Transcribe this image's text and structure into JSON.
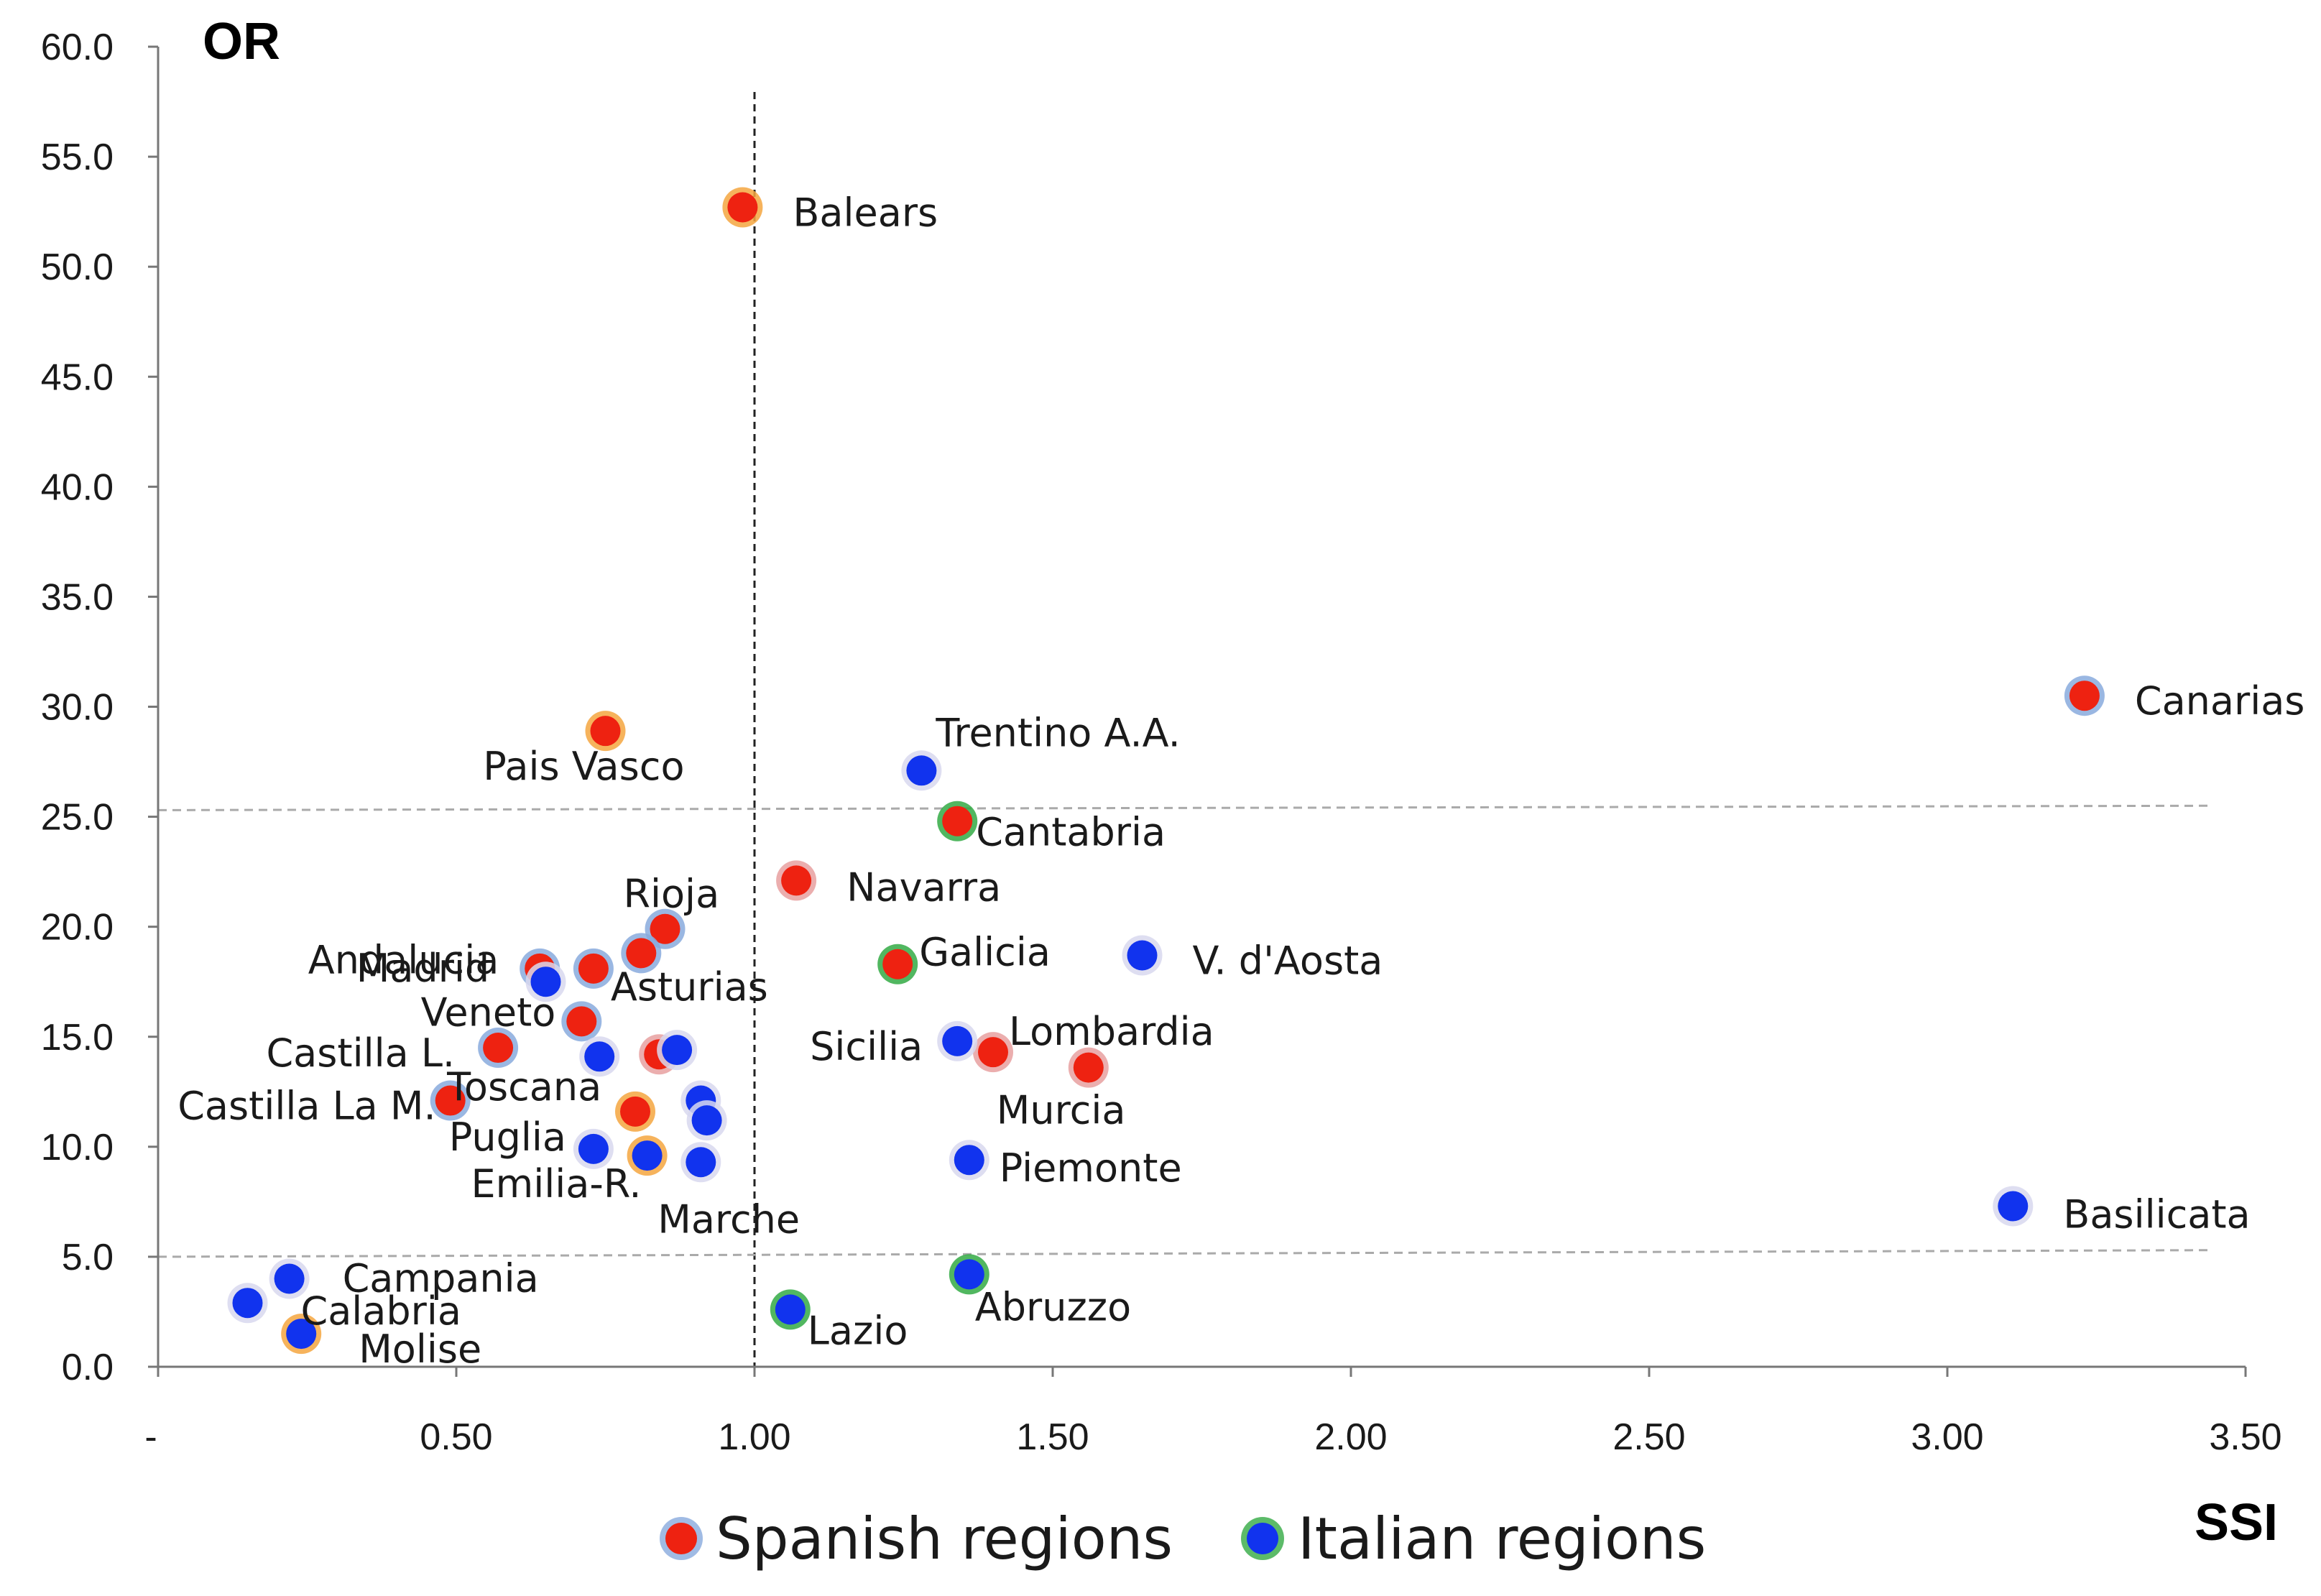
{
  "chart_data": {
    "type": "scatter",
    "xlabel": "SSI",
    "ylabel": "OR",
    "xlim": [
      0,
      3.5
    ],
    "ylim": [
      0,
      60
    ],
    "x_ticks": [
      "-",
      "0.50",
      "1.00",
      "1.50",
      "2.00",
      "2.50",
      "3.00",
      "3.50"
    ],
    "x_tick_values": [
      0,
      0.5,
      1.0,
      1.5,
      2.0,
      2.5,
      3.0,
      3.5
    ],
    "y_ticks": [
      "0.0",
      "5.0",
      "10.0",
      "15.0",
      "20.0",
      "25.0",
      "30.0",
      "35.0",
      "40.0",
      "45.0",
      "50.0",
      "55.0",
      "60.0"
    ],
    "y_tick_values": [
      0,
      5,
      10,
      15,
      20,
      25,
      30,
      35,
      40,
      45,
      50,
      55,
      60
    ],
    "reference_lines": {
      "vertical_x": 1.0,
      "horizontal": [
        {
          "y_start": 25.3,
          "y_end": 25.5
        },
        {
          "y_start": 5.0,
          "y_end": 5.3
        }
      ]
    },
    "legend": [
      {
        "key": "spanish",
        "label": "Spanish regions"
      },
      {
        "key": "italian",
        "label": "Italian regions"
      }
    ],
    "colors": {
      "spanish": "#ee2211",
      "italian": "#1133ee",
      "halo_orange": "#f4a640",
      "halo_green": "#33aa44",
      "halo_blue": "#88aadd",
      "halo_pink": "#e8a0a0",
      "halo_light": "#d8d8ee"
    },
    "series": [
      {
        "name": "Spanish regions",
        "key": "spanish",
        "points": [
          {
            "label": "Balears",
            "x": 0.98,
            "y": 52.7
          },
          {
            "label": "Canarias",
            "x": 3.23,
            "y": 30.5
          },
          {
            "label": "Pais Vasco",
            "x": 0.75,
            "y": 28.9
          },
          {
            "label": "Cantabria",
            "x": 1.34,
            "y": 24.8
          },
          {
            "label": "Navarra",
            "x": 1.07,
            "y": 22.1
          },
          {
            "label": "Galicia",
            "x": 1.24,
            "y": 18.3
          },
          {
            "label": "Rioja",
            "x": 0.85,
            "y": 19.9
          },
          {
            "label": "Madrid",
            "x": 0.64,
            "y": 18.1
          },
          {
            "label": "Asturias",
            "x": 0.73,
            "y": 18.1
          },
          {
            "label": "Andalucia",
            "x": 0.81,
            "y": 18.8
          },
          {
            "label": "Veneto",
            "x": 0.71,
            "y": 15.7
          },
          {
            "label": "Castilla L.",
            "x": 0.57,
            "y": 14.5
          },
          {
            "label": "Toscana",
            "x": 0.84,
            "y": 14.2
          },
          {
            "label": "Lombardia",
            "x": 1.4,
            "y": 14.3
          },
          {
            "label": "Murcia",
            "x": 1.56,
            "y": 13.6
          },
          {
            "label": "Castilla La M.",
            "x": 0.49,
            "y": 12.1
          },
          {
            "label": "Puglia",
            "x": 0.8,
            "y": 11.6
          }
        ]
      },
      {
        "name": "Italian regions",
        "key": "italian",
        "points": [
          {
            "label": "Trentino A.A.",
            "x": 1.28,
            "y": 27.1
          },
          {
            "label": "V. d'Aosta",
            "x": 1.65,
            "y": 18.7
          },
          {
            "label": "Sicilia",
            "x": 1.34,
            "y": 14.8
          },
          {
            "label": "Piemonte",
            "x": 1.36,
            "y": 9.4
          },
          {
            "label": "Basilicata",
            "x": 3.11,
            "y": 7.3
          },
          {
            "label": "Abruzzo",
            "x": 1.36,
            "y": 4.2
          },
          {
            "label": "Lazio",
            "x": 1.06,
            "y": 2.6
          },
          {
            "label": "Campania",
            "x": 0.22,
            "y": 4.0
          },
          {
            "label": "Calabria",
            "x": 0.15,
            "y": 2.9
          },
          {
            "label": "Molise",
            "x": 0.24,
            "y": 1.5
          },
          {
            "label": "Emilia-R.",
            "x": 0.82,
            "y": 9.6
          },
          {
            "label": "Marche",
            "x": 0.91,
            "y": 9.3
          },
          {
            "label": "",
            "x": 0.65,
            "y": 17.5
          },
          {
            "label": "",
            "x": 0.74,
            "y": 14.1
          },
          {
            "label": "",
            "x": 0.87,
            "y": 14.4
          },
          {
            "label": "",
            "x": 0.91,
            "y": 12.1
          },
          {
            "label": "",
            "x": 0.92,
            "y": 11.2
          },
          {
            "label": "",
            "x": 0.73,
            "y": 9.9
          }
        ]
      }
    ]
  }
}
